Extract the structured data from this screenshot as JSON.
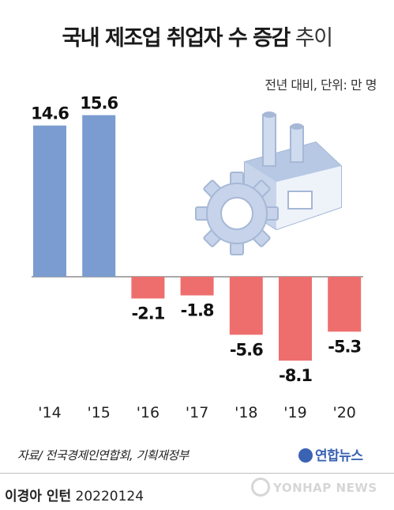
{
  "title": {
    "strong": "국내 제조업 취업자 수 증감",
    "light": "추이"
  },
  "unit_note": "전년 대비, 단위: 만 명",
  "source": "자료/ 전국경제인연합회, 기획재정부",
  "logo": "연합뉴스",
  "byline": {
    "name": "이경아 인턴",
    "date": "20220124"
  },
  "watermark": "YONHAP NEWS",
  "colors": {
    "positive": "#7b9cd0",
    "negative": "#ee6e6e",
    "axis": "#777777"
  },
  "chart_data": {
    "type": "bar",
    "categories": [
      "'14",
      "'15",
      "'16",
      "'17",
      "'18",
      "'19",
      "'20"
    ],
    "values": [
      14.6,
      15.6,
      -2.1,
      -1.8,
      -5.6,
      -8.1,
      -5.3
    ],
    "value_labels": [
      "14.6",
      "15.6",
      "-2.1",
      "-1.8",
      "-5.6",
      "-8.1",
      "-5.3"
    ],
    "title": "국내 제조업 취업자 수 증감 추이",
    "ylabel": "",
    "xlabel": "",
    "ylim": [
      -10,
      17
    ],
    "grid": false,
    "legend": "none"
  }
}
